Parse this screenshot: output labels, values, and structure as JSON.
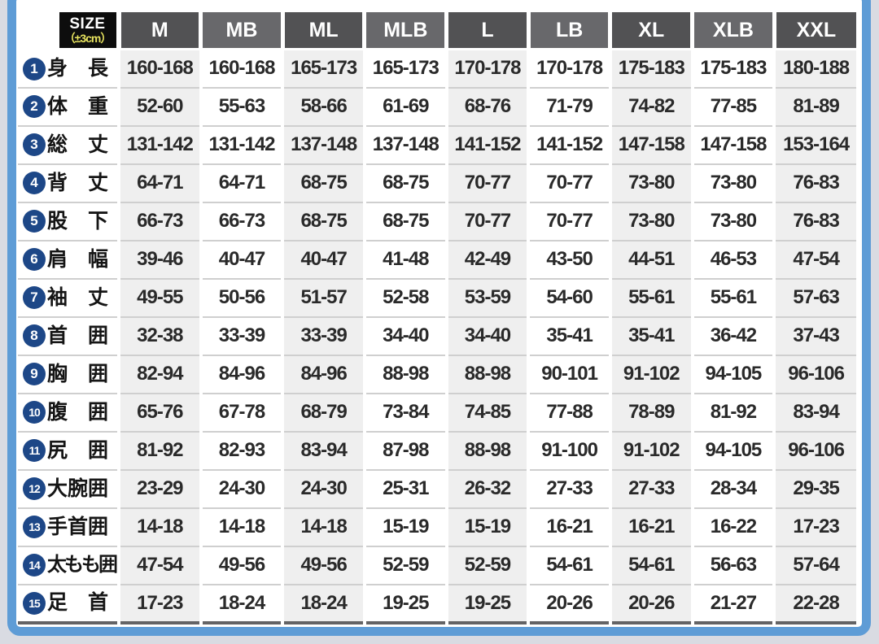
{
  "page": {
    "outer_background": "#d9dbe2",
    "panel_background": "#ffffff",
    "panel_border_color": "#5e9cd6"
  },
  "table_style": {
    "header_bg_dark": "#525254",
    "header_bg_light": "#68686b",
    "header_text": "#ffffff",
    "size_cell_bg": "#0d0d0d",
    "size_label_color": "#ffffff",
    "tolerance_color": "#e8e45f",
    "badge_bg": "#1d4787",
    "badge_text": "#ffffff",
    "shaded_column_bg": "#efefef",
    "row_line": "#cfcfcf",
    "bottom_line": "#636365",
    "shaded_column_indices": [
      0,
      2,
      4,
      6,
      8
    ]
  },
  "chart_data": {
    "type": "table",
    "header": {
      "size_label": "SIZE",
      "tolerance": "（±3cm）"
    },
    "columns": [
      "M",
      "MB",
      "ML",
      "MLB",
      "L",
      "LB",
      "XL",
      "XLB",
      "XXL"
    ],
    "rows": [
      {
        "num": "1",
        "label": "身長",
        "display": "身　長",
        "values": [
          "160-168",
          "160-168",
          "165-173",
          "165-173",
          "170-178",
          "170-178",
          "175-183",
          "175-183",
          "180-188"
        ]
      },
      {
        "num": "2",
        "label": "体重",
        "display": "体　重",
        "values": [
          "52-60",
          "55-63",
          "58-66",
          "61-69",
          "68-76",
          "71-79",
          "74-82",
          "77-85",
          "81-89"
        ]
      },
      {
        "num": "3",
        "label": "総丈",
        "display": "総　丈",
        "values": [
          "131-142",
          "131-142",
          "137-148",
          "137-148",
          "141-152",
          "141-152",
          "147-158",
          "147-158",
          "153-164"
        ]
      },
      {
        "num": "4",
        "label": "背丈",
        "display": "背　丈",
        "values": [
          "64-71",
          "64-71",
          "68-75",
          "68-75",
          "70-77",
          "70-77",
          "73-80",
          "73-80",
          "76-83"
        ]
      },
      {
        "num": "5",
        "label": "股下",
        "display": "股　下",
        "values": [
          "66-73",
          "66-73",
          "68-75",
          "68-75",
          "70-77",
          "70-77",
          "73-80",
          "73-80",
          "76-83"
        ]
      },
      {
        "num": "6",
        "label": "肩幅",
        "display": "肩　幅",
        "values": [
          "39-46",
          "40-47",
          "40-47",
          "41-48",
          "42-49",
          "43-50",
          "44-51",
          "46-53",
          "47-54"
        ]
      },
      {
        "num": "7",
        "label": "袖丈",
        "display": "袖　丈",
        "values": [
          "49-55",
          "50-56",
          "51-57",
          "52-58",
          "53-59",
          "54-60",
          "55-61",
          "55-61",
          "57-63"
        ]
      },
      {
        "num": "8",
        "label": "首囲",
        "display": "首　囲",
        "values": [
          "32-38",
          "33-39",
          "33-39",
          "34-40",
          "34-40",
          "35-41",
          "35-41",
          "36-42",
          "37-43"
        ]
      },
      {
        "num": "9",
        "label": "胸囲",
        "display": "胸　囲",
        "values": [
          "82-94",
          "84-96",
          "84-96",
          "88-98",
          "88-98",
          "90-101",
          "91-102",
          "94-105",
          "96-106"
        ]
      },
      {
        "num": "10",
        "label": "腹囲",
        "display": "腹　囲",
        "values": [
          "65-76",
          "67-78",
          "68-79",
          "73-84",
          "74-85",
          "77-88",
          "78-89",
          "81-92",
          "83-94"
        ]
      },
      {
        "num": "11",
        "label": "尻囲",
        "display": "尻　囲",
        "values": [
          "81-92",
          "82-93",
          "83-94",
          "87-98",
          "88-98",
          "91-100",
          "91-102",
          "94-105",
          "96-106"
        ]
      },
      {
        "num": "12",
        "label": "大腕囲",
        "display": "大腕囲",
        "values": [
          "23-29",
          "24-30",
          "24-30",
          "25-31",
          "26-32",
          "27-33",
          "27-33",
          "28-34",
          "29-35"
        ]
      },
      {
        "num": "13",
        "label": "手首囲",
        "display": "手首囲",
        "values": [
          "14-18",
          "14-18",
          "14-18",
          "15-19",
          "15-19",
          "16-21",
          "16-21",
          "16-22",
          "17-23"
        ]
      },
      {
        "num": "14",
        "label": "太もも囲",
        "display": "太もも囲",
        "values": [
          "47-54",
          "49-56",
          "49-56",
          "52-59",
          "52-59",
          "54-61",
          "54-61",
          "56-63",
          "57-64"
        ]
      },
      {
        "num": "15",
        "label": "足首",
        "display": "足　首",
        "values": [
          "17-23",
          "18-24",
          "18-24",
          "19-25",
          "19-25",
          "20-26",
          "20-26",
          "21-27",
          "22-28"
        ]
      }
    ]
  }
}
